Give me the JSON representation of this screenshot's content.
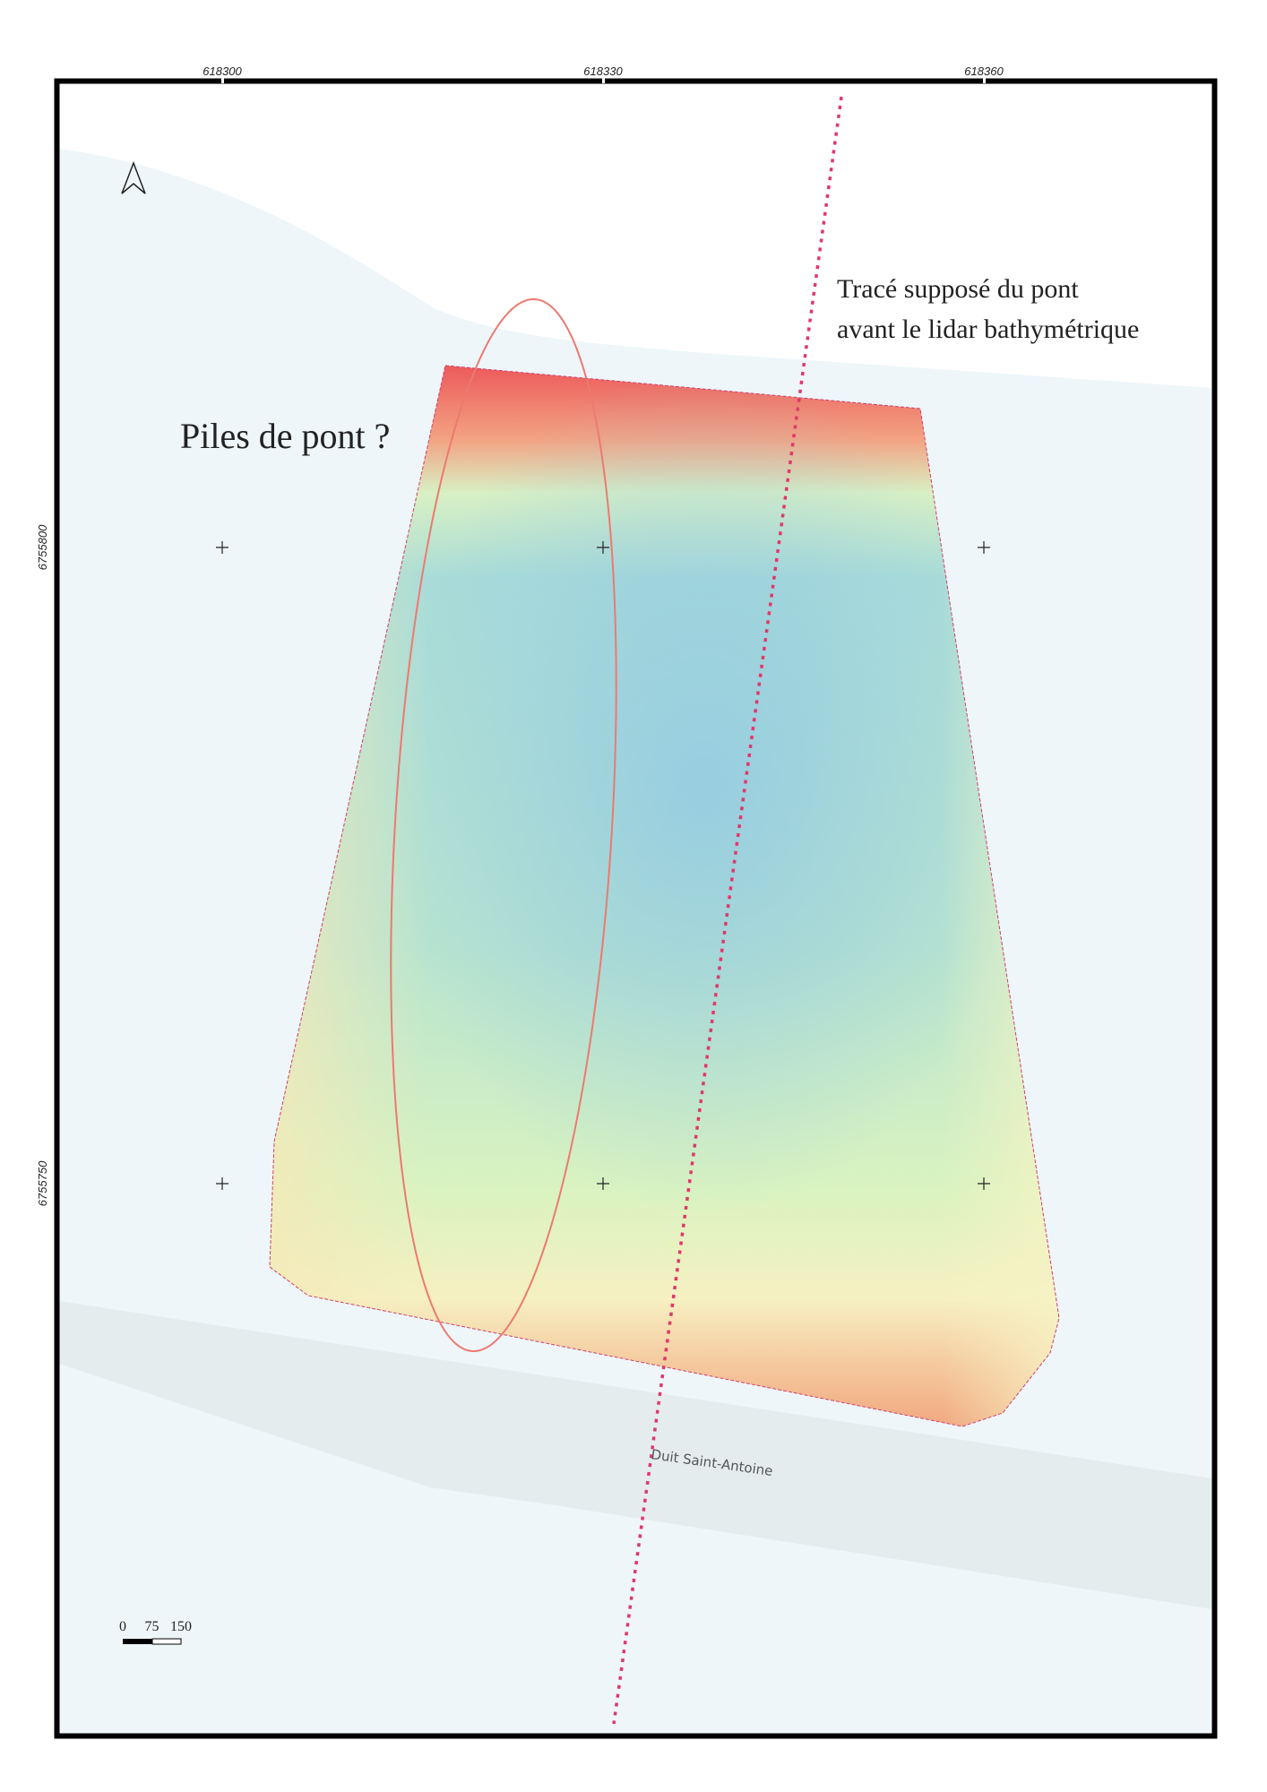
{
  "annotations": {
    "bridge_trace": [
      "Tracé supposé du pont",
      "avant le lidar bathymétrique"
    ],
    "piers": "Piles de pont ?",
    "road": "Duit Saint-Antoine"
  },
  "grid": {
    "x_labels": [
      618300,
      618330,
      618360
    ],
    "y_labels": [
      6755800,
      6755750
    ]
  },
  "scale_bar": {
    "labels": [
      0,
      75,
      150
    ]
  }
}
